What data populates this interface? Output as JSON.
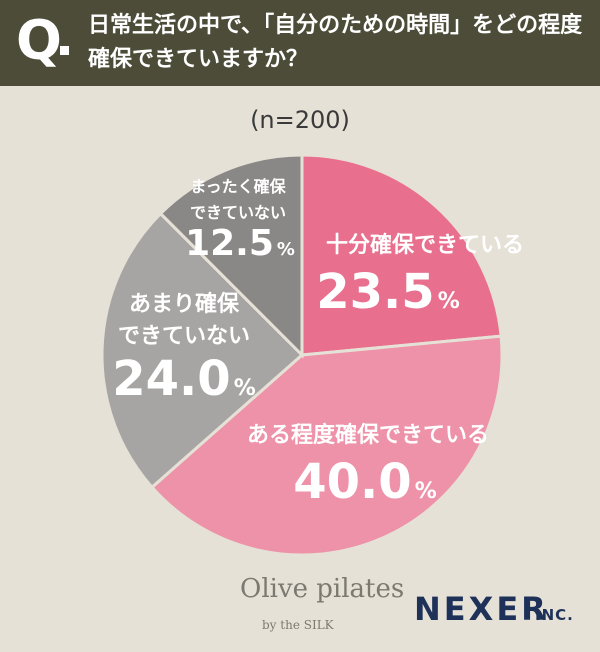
{
  "header": {
    "q_mark": "Q",
    "question_line1": "日常生活の中で、「自分のための時間」をどの程度",
    "question_line2": "確保できていますか？"
  },
  "sample_label": "(n=200)",
  "colors": {
    "header_bg": "#4c4c38",
    "page_bg": "#e6e1d6",
    "slice_fully": "#e8708e",
    "slice_somewhat": "#ed92a8",
    "slice_not_much": "#a7a4a4",
    "slice_not_at_all": "#8a8787"
  },
  "chart_data": {
    "type": "pie",
    "title": "",
    "slices": [
      {
        "label": "十分確保できている",
        "value": 23.5,
        "value_label": "23.5%",
        "color": "#e8708e"
      },
      {
        "label": "ある程度確保できている",
        "value": 40.0,
        "value_label": "40.0%",
        "color": "#ed92a8"
      },
      {
        "label_lines": [
          "あまり確保",
          "できていない"
        ],
        "label": "あまり確保できていない",
        "value": 24.0,
        "value_label": "24.0%",
        "color": "#a7a4a4"
      },
      {
        "label_lines": [
          "まったく確保",
          "できていない"
        ],
        "label": "まったく確保できていない",
        "value": 12.5,
        "value_label": "12.5%",
        "color": "#8a8787"
      }
    ]
  },
  "brands": {
    "olive": "Olive pilates",
    "olive_sub": "by the SILK",
    "nexer": "NEXER",
    "inc": "INC."
  }
}
